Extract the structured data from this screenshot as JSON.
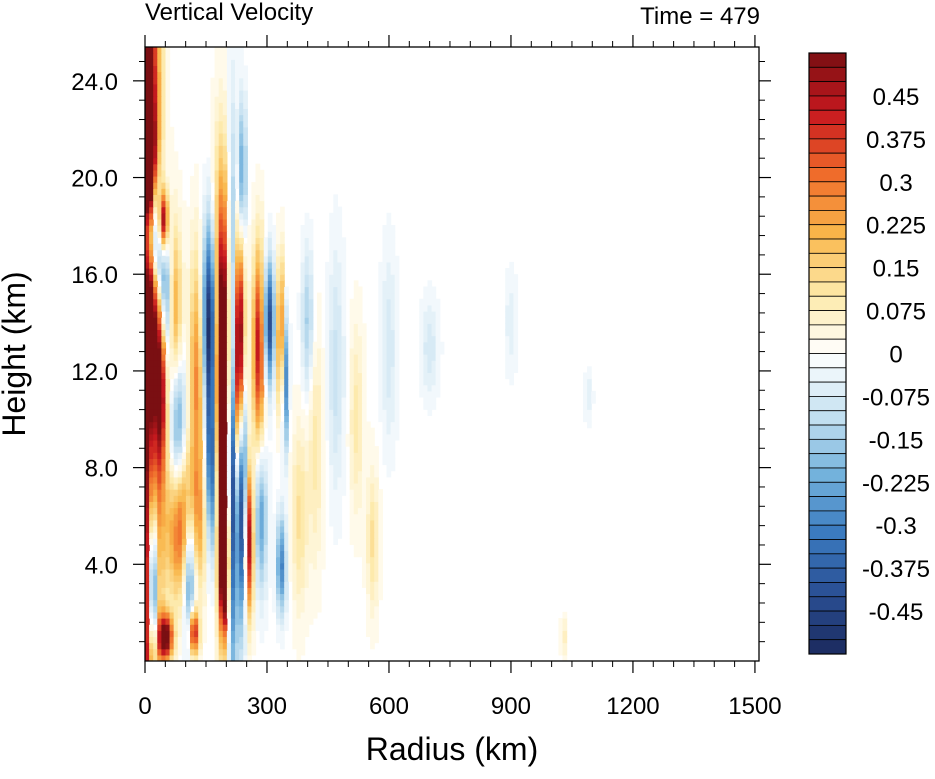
{
  "chart_data": {
    "type": "heatmap",
    "title": "Vertical Velocity",
    "time_label": "Time = 479",
    "xlabel": "Radius (km)",
    "ylabel": "Height (km)",
    "xlim": [
      0,
      1510
    ],
    "ylim": [
      0,
      25.4
    ],
    "x_ticks": [
      0,
      300,
      600,
      900,
      1200,
      1500
    ],
    "x_tick_labels": [
      "0",
      "300",
      "600",
      "900",
      "1200",
      "1500"
    ],
    "y_ticks": [
      4,
      8,
      12,
      16,
      20,
      24
    ],
    "y_tick_labels": [
      "4.0",
      "8.0",
      "12.0",
      "16.0",
      "20.0",
      "24.0"
    ],
    "colorbar": {
      "min": -0.525,
      "max": 0.525,
      "step": 0.025,
      "tick_values": [
        0.45,
        0.375,
        0.3,
        0.225,
        0.15,
        0.075,
        0,
        -0.075,
        -0.15,
        -0.225,
        -0.3,
        -0.375,
        -0.45
      ],
      "tick_labels": [
        "0.45",
        "0.375",
        "0.3",
        "0.225",
        "0.15",
        "0.075",
        "0",
        "-0.075",
        "-0.15",
        "-0.225",
        "-0.3",
        "-0.375",
        "-0.45"
      ]
    },
    "colormap": [
      "#1b2a5e",
      "#2a4f94",
      "#3a7abf",
      "#74b3dd",
      "#c7e2f1",
      "#ffffff",
      "#fde9a8",
      "#f9b64a",
      "#ef6a2a",
      "#c8191f",
      "#7a0f12"
    ],
    "features": [
      {
        "x": 5,
        "y": 14.5,
        "w": 30,
        "wz": 22,
        "a": 0.7
      },
      {
        "x": 15,
        "y": 12,
        "w": 14,
        "wz": 8,
        "a": 0.5
      },
      {
        "x": 20,
        "y": 17.5,
        "w": 25,
        "wz": 2.5,
        "a": -0.7
      },
      {
        "x": 15,
        "y": 8.5,
        "w": 14,
        "wz": 6,
        "a": -0.6
      },
      {
        "x": 40,
        "y": 12.5,
        "w": 14,
        "wz": 4,
        "a": 0.6
      },
      {
        "x": 45,
        "y": 18.2,
        "w": 12,
        "wz": 1.3,
        "a": 0.6
      },
      {
        "x": 10,
        "y": 21,
        "w": 10,
        "wz": 2,
        "a": 0.5
      },
      {
        "x": 45,
        "y": 14.5,
        "w": 16,
        "wz": 3,
        "a": -0.5
      },
      {
        "x": 20,
        "y": 3,
        "w": 10,
        "wz": 3,
        "a": -0.6
      },
      {
        "x": 75,
        "y": 14,
        "w": 16,
        "wz": 4,
        "a": 0.25
      },
      {
        "x": 80,
        "y": 10,
        "w": 18,
        "wz": 3,
        "a": -0.3
      },
      {
        "x": 100,
        "y": 5.5,
        "w": 45,
        "wz": 3,
        "a": 0.4
      },
      {
        "x": 110,
        "y": 4,
        "w": 16,
        "wz": 3,
        "a": -0.45
      },
      {
        "x": 130,
        "y": 12,
        "w": 20,
        "wz": 5,
        "a": 0.3
      },
      {
        "x": 160,
        "y": 14,
        "w": 20,
        "wz": 4,
        "a": -0.6
      },
      {
        "x": 165,
        "y": 8,
        "w": 15,
        "wz": 4,
        "a": -0.5
      },
      {
        "x": 190,
        "y": 12,
        "w": 22,
        "wz": 7,
        "a": 0.85
      },
      {
        "x": 195,
        "y": 4,
        "w": 12,
        "wz": 3,
        "a": 0.7
      },
      {
        "x": 215,
        "y": 10,
        "w": 14,
        "wz": 9,
        "a": -0.7
      },
      {
        "x": 230,
        "y": 12.5,
        "w": 14,
        "wz": 5,
        "a": 0.8
      },
      {
        "x": 240,
        "y": 7,
        "w": 10,
        "wz": 5,
        "a": -0.6
      },
      {
        "x": 255,
        "y": 5,
        "w": 12,
        "wz": 3,
        "a": 0.5
      },
      {
        "x": 240,
        "y": 20,
        "w": 8,
        "wz": 3,
        "a": -0.3
      },
      {
        "x": 280,
        "y": 13,
        "w": 15,
        "wz": 4,
        "a": 0.45
      },
      {
        "x": 285,
        "y": 6,
        "w": 15,
        "wz": 3,
        "a": -0.25
      },
      {
        "x": 305,
        "y": 14,
        "w": 14,
        "wz": 2.5,
        "a": -0.45
      },
      {
        "x": 335,
        "y": 13.5,
        "w": 12,
        "wz": 3,
        "a": 0.35
      },
      {
        "x": 345,
        "y": 12,
        "w": 8,
        "wz": 3,
        "a": -0.4
      },
      {
        "x": 335,
        "y": 4,
        "w": 12,
        "wz": 2,
        "a": -0.3
      },
      {
        "x": 400,
        "y": 14,
        "w": 15,
        "wz": 3,
        "a": -0.15
      },
      {
        "x": 380,
        "y": 6,
        "w": 20,
        "wz": 4,
        "a": 0.12
      },
      {
        "x": 420,
        "y": 9,
        "w": 18,
        "wz": 5,
        "a": 0.1
      },
      {
        "x": 470,
        "y": 12,
        "w": 20,
        "wz": 5,
        "a": -0.1
      },
      {
        "x": 520,
        "y": 10,
        "w": 18,
        "wz": 4,
        "a": 0.1
      },
      {
        "x": 560,
        "y": 5,
        "w": 15,
        "wz": 3,
        "a": 0.12
      },
      {
        "x": 600,
        "y": 13,
        "w": 20,
        "wz": 4,
        "a": -0.08
      },
      {
        "x": 700,
        "y": 13,
        "w": 22,
        "wz": 2,
        "a": -0.08
      },
      {
        "x": 900,
        "y": 14,
        "w": 15,
        "wz": 2,
        "a": -0.06
      },
      {
        "x": 1090,
        "y": 11,
        "w": 10,
        "wz": 1,
        "a": -0.06
      },
      {
        "x": 1030,
        "y": 1,
        "w": 8,
        "wz": 0.8,
        "a": 0.08
      },
      {
        "x": 50,
        "y": 1,
        "w": 18,
        "wz": 0.9,
        "a": 0.6
      },
      {
        "x": 120,
        "y": 1.2,
        "w": 12,
        "wz": 1,
        "a": 0.5
      }
    ]
  }
}
